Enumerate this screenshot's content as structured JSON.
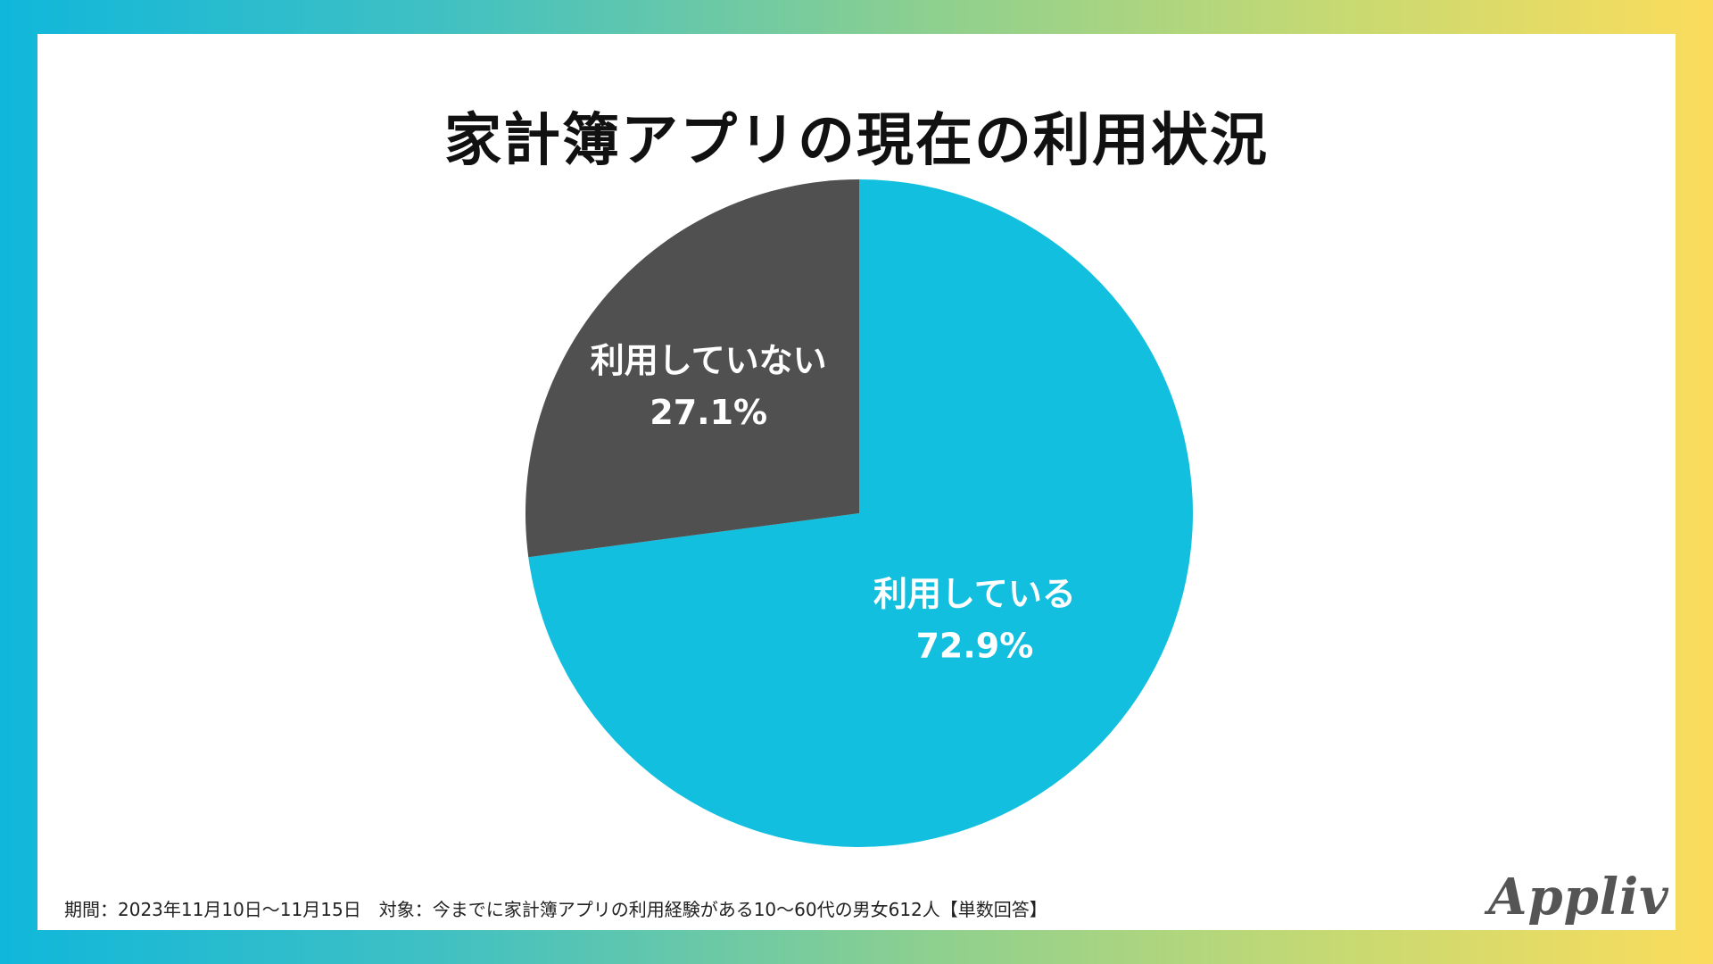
{
  "title": "家計簿アプリの現在の利用状況",
  "chart_data": {
    "type": "pie",
    "title": "家計簿アプリの現在の利用状況",
    "slices": [
      {
        "label": "利用している",
        "value": 72.9,
        "value_label": "72.9%",
        "color": "#12bfde"
      },
      {
        "label": "利用していない",
        "value": 27.1,
        "value_label": "27.1%",
        "color": "#505050"
      }
    ],
    "start": "12 o'clock",
    "direction": "clockwise"
  },
  "footnote": "期間：2023年11月10日〜11月15日　対象：今までに家計簿アプリの利用経験がある10〜60代の男女612人【単数回答】",
  "logo": "Appliv",
  "colors": {
    "background_gradient": [
      "#10b7da",
      "#fbdc5c"
    ],
    "card": "#ffffff",
    "title_text": "#111111"
  }
}
